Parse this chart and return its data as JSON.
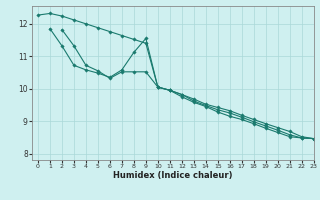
{
  "xlabel": "Humidex (Indice chaleur)",
  "background_color": "#cff0f0",
  "grid_color": "#aad8d8",
  "line_color": "#1a7a6e",
  "xlim": [
    -0.5,
    23
  ],
  "ylim": [
    7.8,
    12.55
  ],
  "yticks": [
    8,
    9,
    10,
    11,
    12
  ],
  "xticks": [
    0,
    1,
    2,
    3,
    4,
    5,
    6,
    7,
    8,
    9,
    10,
    11,
    12,
    13,
    14,
    15,
    16,
    17,
    18,
    19,
    20,
    21,
    22,
    23
  ],
  "line1_x": [
    0,
    1,
    2,
    3,
    4,
    5,
    6,
    7,
    8,
    9,
    10,
    11,
    12,
    13,
    14,
    15,
    16,
    17,
    18,
    19,
    20,
    21,
    22,
    23
  ],
  "line1_y": [
    12.27,
    12.32,
    12.24,
    12.12,
    12.0,
    11.88,
    11.76,
    11.64,
    11.52,
    11.4,
    10.05,
    9.95,
    9.82,
    9.68,
    9.52,
    9.42,
    9.32,
    9.18,
    9.05,
    8.92,
    8.8,
    8.68,
    8.52,
    8.46
  ],
  "line2_x": [
    1,
    2,
    3,
    4,
    5,
    6,
    7,
    8,
    9,
    10,
    11,
    12,
    13,
    14,
    15,
    16,
    17,
    18,
    19,
    20,
    21,
    22,
    23
  ],
  "line2_y": [
    11.85,
    11.32,
    10.72,
    10.58,
    10.48,
    10.35,
    10.58,
    11.12,
    11.55,
    10.05,
    9.95,
    9.82,
    9.62,
    9.48,
    9.35,
    9.25,
    9.12,
    8.98,
    8.85,
    8.72,
    8.58,
    8.48,
    8.46
  ],
  "line3_x": [
    2,
    3,
    4,
    5,
    6,
    7,
    8,
    9,
    10,
    11,
    12,
    13,
    14,
    15,
    16,
    17,
    18,
    19,
    20,
    21,
    22,
    23
  ],
  "line3_y": [
    11.82,
    11.32,
    10.72,
    10.55,
    10.32,
    10.52,
    10.52,
    10.52,
    10.05,
    9.95,
    9.75,
    9.58,
    9.45,
    9.28,
    9.15,
    9.05,
    8.92,
    8.78,
    8.65,
    8.52,
    8.48,
    8.46
  ]
}
